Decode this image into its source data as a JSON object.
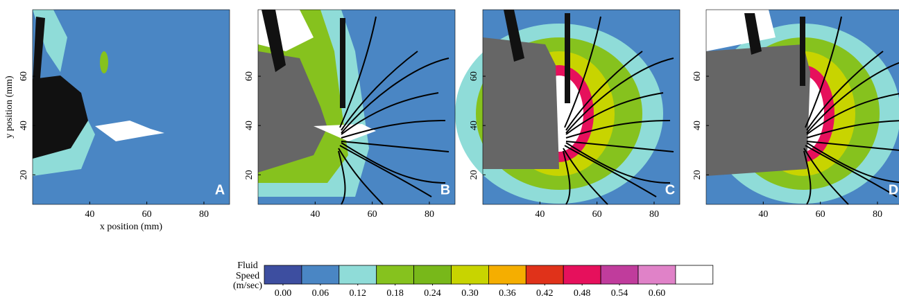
{
  "chart_data": [
    {
      "type": "contour",
      "panel_label": "A",
      "xlabel": "x position (mm)",
      "ylabel": "y position (mm)",
      "xlim": [
        20,
        89
      ],
      "ylim": [
        8,
        87
      ],
      "xticks": [
        40,
        60,
        80
      ],
      "yticks": [
        20,
        40,
        60
      ]
    },
    {
      "type": "contour",
      "panel_label": "B",
      "xlim": [
        20,
        89
      ],
      "ylim": [
        8,
        87
      ],
      "xticks": [
        40,
        60,
        80
      ],
      "yticks": [
        20,
        40,
        60
      ]
    },
    {
      "type": "contour",
      "panel_label": "C",
      "xlim": [
        20,
        89
      ],
      "ylim": [
        8,
        87
      ],
      "xticks": [
        40,
        60,
        80
      ],
      "yticks": [
        20,
        40,
        60
      ]
    },
    {
      "type": "contour",
      "panel_label": "D",
      "xlim": [
        20,
        89
      ],
      "ylim": [
        8,
        87
      ],
      "xticks": [
        40,
        60,
        80
      ],
      "yticks": [
        20,
        40,
        60
      ]
    }
  ],
  "colorbar": {
    "title": [
      "Fluid",
      "Speed",
      "(m/sec)"
    ],
    "colors": [
      "#3d4ea0",
      "#4a86c4",
      "#8fdcd8",
      "#86c21e",
      "#78b81a",
      "#c8d400",
      "#f5ae00",
      "#e0321a",
      "#e6105c",
      "#c03c9c",
      "#e082c8",
      "#ffffff"
    ],
    "ticks": [
      {
        "value": 0,
        "label": "0.00"
      },
      {
        "value": 0.06,
        "label": "0.06"
      },
      {
        "value": 0.12,
        "label": "0.12"
      },
      {
        "value": 0.18,
        "label": "0.18"
      },
      {
        "value": 0.24,
        "label": "0.24"
      },
      {
        "value": 0.3,
        "label": "0.30"
      },
      {
        "value": 0.36,
        "label": "0.36"
      },
      {
        "value": 0.42,
        "label": "0.42"
      },
      {
        "value": 0.48,
        "label": "0.48"
      },
      {
        "value": 0.54,
        "label": "0.54"
      },
      {
        "value": 0.6,
        "label": "0.60"
      }
    ]
  }
}
